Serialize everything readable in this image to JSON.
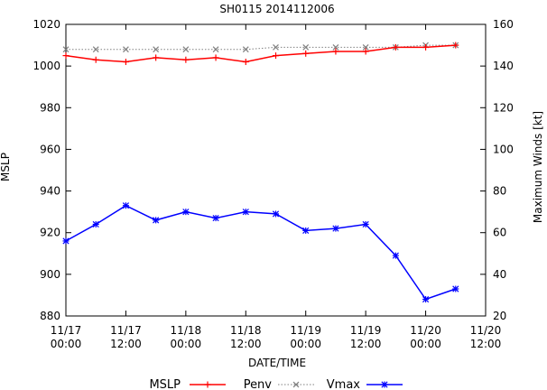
{
  "chart_data": {
    "type": "line",
    "title": "SH0115 2014112006",
    "xlabel": "DATE/TIME",
    "ylabel_left": "MSLP",
    "ylabel_right": "Maximum Winds [kt]",
    "ylim_left": [
      880,
      1020
    ],
    "ylim_right": [
      20,
      160
    ],
    "yticks_left": [
      "880",
      "900",
      "920",
      "940",
      "960",
      "980",
      "1000",
      "1020"
    ],
    "yticks_right": [
      "20",
      "40",
      "60",
      "80",
      "100",
      "120",
      "140",
      "160"
    ],
    "xlim": [
      0,
      84
    ],
    "xticks": [
      {
        "x": 0,
        "date": "11/17",
        "time": "00:00"
      },
      {
        "x": 12,
        "date": "11/17",
        "time": "12:00"
      },
      {
        "x": 24,
        "date": "11/18",
        "time": "00:00"
      },
      {
        "x": 36,
        "date": "11/18",
        "time": "12:00"
      },
      {
        "x": 48,
        "date": "11/19",
        "time": "00:00"
      },
      {
        "x": 60,
        "date": "11/19",
        "time": "12:00"
      },
      {
        "x": 72,
        "date": "11/20",
        "time": "00:00"
      },
      {
        "x": 84,
        "date": "11/20",
        "time": "12:00"
      }
    ],
    "legend": {
      "placement": "bottom",
      "entries": [
        {
          "label": "MSLP",
          "series": "MSLP"
        },
        {
          "label": "Penv",
          "series": "Penv"
        },
        {
          "label": "Vmax",
          "series": "Vmax"
        }
      ]
    },
    "series": [
      {
        "name": "MSLP",
        "axis": "left",
        "color": "#ff0000",
        "marker": "plus",
        "line": "solid",
        "x": [
          0,
          6,
          12,
          18,
          24,
          30,
          36,
          42,
          48,
          54,
          60,
          66,
          72,
          78
        ],
        "values": [
          1005,
          1003,
          1002,
          1004,
          1003,
          1004,
          1002,
          1005,
          1006,
          1007,
          1007,
          1009,
          1009,
          1010
        ]
      },
      {
        "name": "Penv",
        "axis": "left",
        "color": "#808080",
        "marker": "cross",
        "line": "dotted",
        "x": [
          0,
          6,
          12,
          18,
          24,
          30,
          36,
          42,
          48,
          54,
          60,
          66,
          72,
          78
        ],
        "values": [
          1008,
          1008,
          1008,
          1008,
          1008,
          1008,
          1008,
          1009,
          1009,
          1009,
          1009,
          1009,
          1010,
          1010
        ]
      },
      {
        "name": "Vmax",
        "axis": "right",
        "color": "#0000ff",
        "marker": "star",
        "line": "solid",
        "x": [
          0,
          6,
          12,
          18,
          24,
          30,
          36,
          42,
          48,
          54,
          60,
          66,
          72,
          78
        ],
        "values": [
          56,
          64,
          73,
          66,
          70,
          67,
          70,
          69,
          61,
          62,
          64,
          49,
          28,
          33
        ]
      }
    ]
  }
}
